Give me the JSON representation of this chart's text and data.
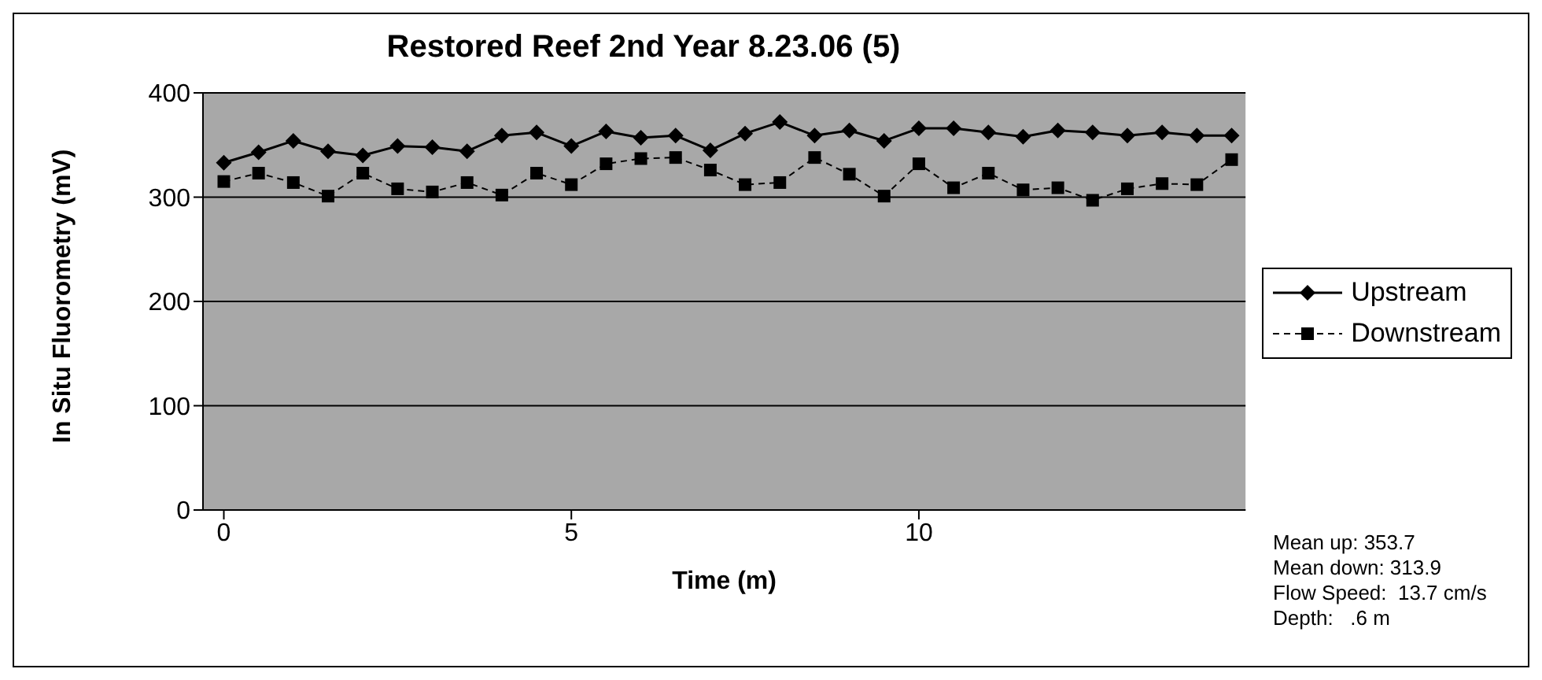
{
  "chart_data": {
    "type": "line",
    "title": "Restored Reef 2nd Year 8.23.06 (5)",
    "xlabel": "Time (m)",
    "ylabel": "In Situ Fluorometry (mV)",
    "x": [
      0,
      0.5,
      1,
      1.5,
      2,
      2.5,
      3,
      3.5,
      4,
      4.5,
      5,
      5.5,
      6,
      6.5,
      7,
      7.5,
      8,
      8.5,
      9,
      9.5,
      10,
      10.5,
      11,
      11.5,
      12,
      12.5,
      13,
      13.5,
      14,
      14.5
    ],
    "series": [
      {
        "name": "Upstream",
        "color": "#000000",
        "marker": "diamond",
        "line_style": "solid",
        "values": [
          333,
          343,
          354,
          344,
          340,
          349,
          348,
          344,
          359,
          362,
          349,
          363,
          357,
          359,
          345,
          361,
          372,
          359,
          364,
          354,
          366,
          366,
          362,
          358,
          364,
          362,
          359,
          362,
          359,
          359
        ]
      },
      {
        "name": "Downstream",
        "color": "#000000",
        "marker": "square",
        "line_style": "dashed",
        "values": [
          315,
          323,
          314,
          301,
          323,
          308,
          305,
          314,
          302,
          323,
          312,
          332,
          337,
          338,
          326,
          312,
          314,
          338,
          322,
          301,
          332,
          309,
          323,
          307,
          309,
          297,
          308,
          313,
          312,
          336
        ]
      }
    ],
    "xlim": [
      -0.3,
      14.7
    ],
    "xticks": [
      0,
      5,
      10
    ],
    "ylim": [
      0,
      400
    ],
    "yticks": [
      0,
      100,
      200,
      300,
      400
    ],
    "grid": "y",
    "legend": "right",
    "annotations": [
      "Mean up: 353.7",
      "Mean down: 313.9",
      "Flow Speed:  13.7 cm/s",
      "Depth:   .6 m"
    ]
  }
}
